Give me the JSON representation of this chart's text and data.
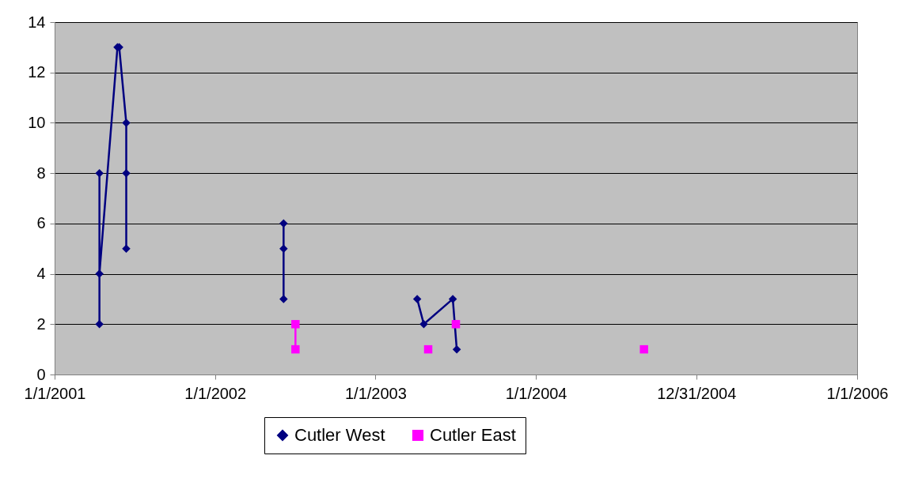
{
  "chart_data": {
    "type": "line",
    "x": [
      "2001-04-13",
      "2001-04-13",
      "2001-04-13",
      "2001-05-24",
      "2001-05-28",
      "2001-06-13",
      "2001-06-13",
      "2001-06-13",
      "2002-01-01",
      "2002-06-06",
      "2002-06-06",
      "2002-06-06",
      "2002-12-01",
      "2003-04-06",
      "2003-04-21",
      "2003-06-26",
      "2003-07-05"
    ],
    "series": [
      {
        "name": "Cutler West",
        "color": "#000080",
        "marker": "diamond",
        "values": [
          8,
          2,
          4,
          13,
          13,
          10,
          8,
          5,
          null,
          6,
          5,
          3,
          null,
          3,
          2,
          3,
          1
        ]
      },
      {
        "name": "Cutler East",
        "color": "#ff00ff",
        "marker": "square",
        "x": [
          "2002-07-03",
          "2002-07-03",
          "2003-01-01",
          "2003-05-01",
          "2003-06-01",
          "2003-07-03",
          "2004-01-01",
          "2004-09-03"
        ],
        "values": [
          2,
          1,
          null,
          1,
          null,
          2,
          null,
          1
        ]
      }
    ],
    "xlim": [
      "2001-01-01",
      "2006-01-01"
    ],
    "xticks": [
      {
        "value": "2001-01-01",
        "label": "1/1/2001"
      },
      {
        "value": "2002-01-01",
        "label": "1/1/2002"
      },
      {
        "value": "2003-01-01",
        "label": "1/1/2003"
      },
      {
        "value": "2004-01-01",
        "label": "1/1/2004"
      },
      {
        "value": "2004-12-31",
        "label": "12/31/2004"
      },
      {
        "value": "2006-01-01",
        "label": "1/1/2006"
      }
    ],
    "ylim": [
      0,
      14
    ],
    "yticks": [
      0,
      2,
      4,
      6,
      8,
      10,
      12,
      14
    ],
    "grid": "y",
    "legend": "bottom",
    "line_style": "solid"
  }
}
